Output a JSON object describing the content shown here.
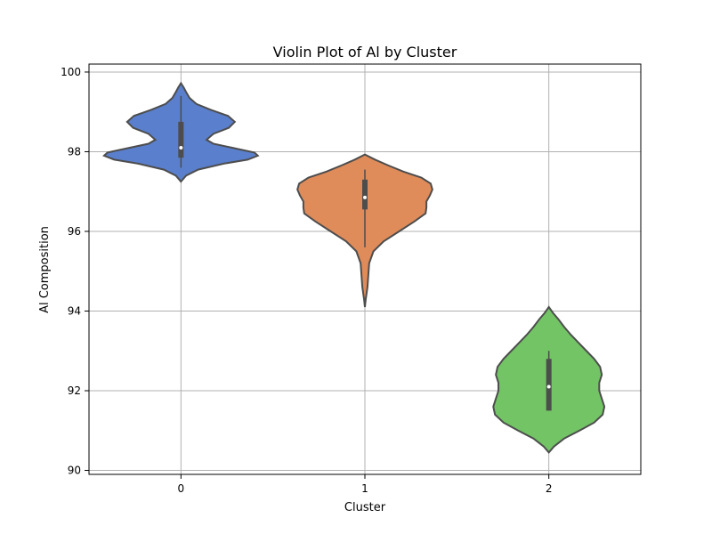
{
  "chart_data": {
    "type": "violin",
    "title": "Violin Plot of Al by Cluster",
    "xlabel": "Cluster",
    "ylabel": "Al Composition",
    "categories": [
      "0",
      "1",
      "2"
    ],
    "ylim": [
      89.9,
      100.2
    ],
    "yticks": [
      90,
      92,
      94,
      96,
      98,
      100
    ],
    "grid": true,
    "violins": [
      {
        "category": "0",
        "color": "#5a7fcc",
        "min": 97.6,
        "q1": 97.85,
        "median": 98.1,
        "q3": 98.75,
        "max": 99.4,
        "density": [
          [
            97.25,
            0.0
          ],
          [
            97.4,
            0.06
          ],
          [
            97.55,
            0.2
          ],
          [
            97.7,
            0.5
          ],
          [
            97.8,
            0.78
          ],
          [
            97.9,
            0.9
          ],
          [
            97.98,
            0.86
          ],
          [
            98.1,
            0.6
          ],
          [
            98.2,
            0.38
          ],
          [
            98.3,
            0.3
          ],
          [
            98.45,
            0.38
          ],
          [
            98.6,
            0.56
          ],
          [
            98.75,
            0.63
          ],
          [
            98.9,
            0.55
          ],
          [
            99.05,
            0.35
          ],
          [
            99.2,
            0.18
          ],
          [
            99.35,
            0.1
          ],
          [
            99.5,
            0.06
          ],
          [
            99.62,
            0.03
          ],
          [
            99.72,
            0.0
          ]
        ]
      },
      {
        "category": "1",
        "color": "#e08c5a",
        "min": 95.6,
        "q1": 96.55,
        "median": 96.85,
        "q3": 97.3,
        "max": 97.55,
        "density": [
          [
            94.1,
            0.0
          ],
          [
            94.3,
            0.01
          ],
          [
            94.6,
            0.03
          ],
          [
            94.9,
            0.04
          ],
          [
            95.2,
            0.05
          ],
          [
            95.5,
            0.1
          ],
          [
            95.75,
            0.22
          ],
          [
            96.0,
            0.4
          ],
          [
            96.25,
            0.58
          ],
          [
            96.45,
            0.71
          ],
          [
            96.6,
            0.72
          ],
          [
            96.75,
            0.72
          ],
          [
            96.9,
            0.76
          ],
          [
            97.05,
            0.79
          ],
          [
            97.2,
            0.77
          ],
          [
            97.35,
            0.66
          ],
          [
            97.5,
            0.45
          ],
          [
            97.65,
            0.28
          ],
          [
            97.8,
            0.12
          ],
          [
            97.93,
            0.0
          ]
        ]
      },
      {
        "category": "2",
        "color": "#72c465",
        "min": 91.5,
        "q1": 91.5,
        "median": 92.1,
        "q3": 92.8,
        "max": 93.0,
        "density": [
          [
            90.45,
            0.0
          ],
          [
            90.6,
            0.06
          ],
          [
            90.8,
            0.18
          ],
          [
            91.0,
            0.36
          ],
          [
            91.2,
            0.53
          ],
          [
            91.4,
            0.63
          ],
          [
            91.6,
            0.65
          ],
          [
            91.8,
            0.62
          ],
          [
            92.0,
            0.59
          ],
          [
            92.2,
            0.59
          ],
          [
            92.4,
            0.62
          ],
          [
            92.6,
            0.6
          ],
          [
            92.8,
            0.53
          ],
          [
            93.0,
            0.44
          ],
          [
            93.2,
            0.35
          ],
          [
            93.4,
            0.26
          ],
          [
            93.6,
            0.18
          ],
          [
            93.8,
            0.11
          ],
          [
            93.95,
            0.05
          ],
          [
            94.1,
            0.0
          ]
        ]
      }
    ]
  }
}
